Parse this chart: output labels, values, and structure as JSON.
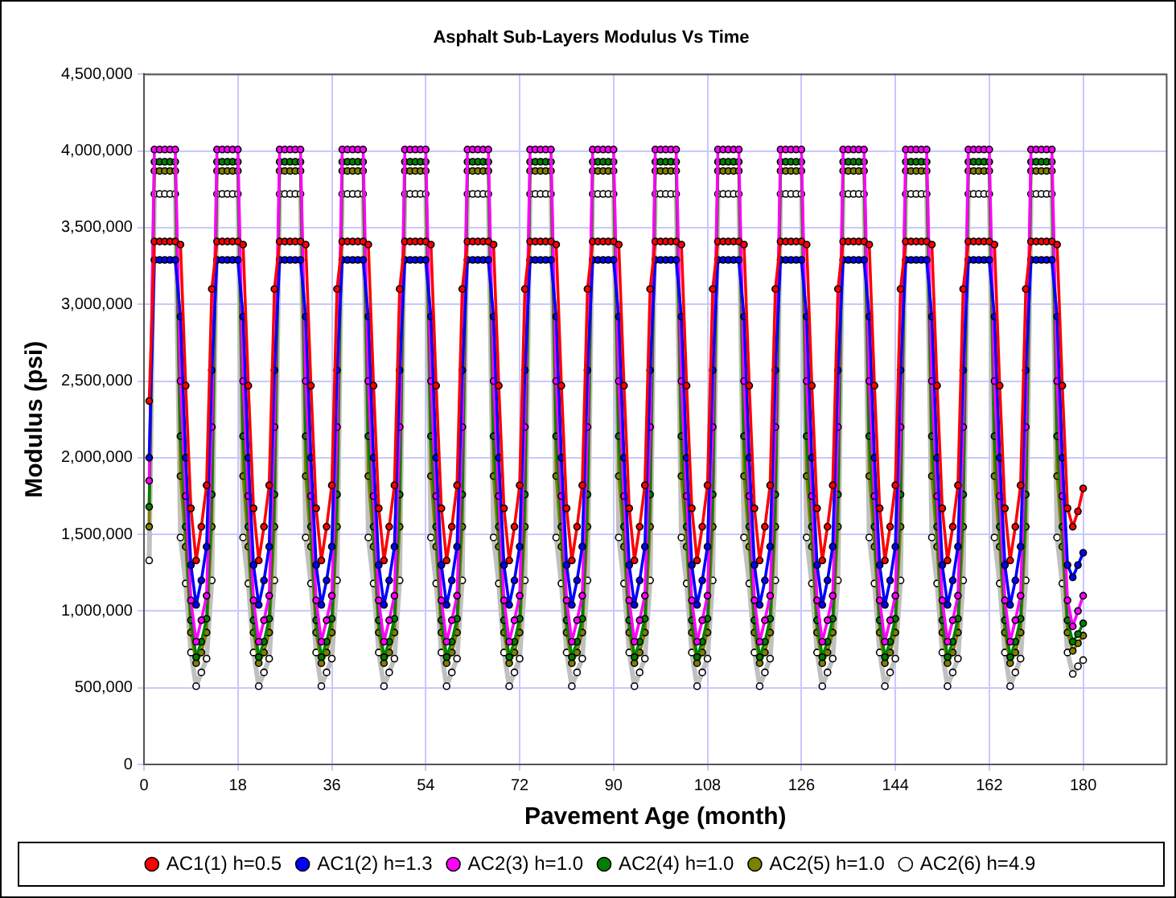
{
  "chart_data": {
    "type": "line",
    "title": "Asphalt Sub-Layers Modulus Vs Time",
    "xlabel": "Pavement Age (month)",
    "ylabel": "Modulus (psi)",
    "x": [
      1,
      2,
      3,
      4,
      5,
      6,
      7,
      8,
      9,
      10,
      11,
      12,
      13,
      14,
      15,
      16,
      17,
      18,
      19,
      20,
      21,
      22,
      23,
      24,
      25,
      26,
      27,
      28,
      29,
      30,
      31,
      32,
      33,
      34,
      35,
      36,
      37,
      38,
      39,
      40,
      41,
      42,
      43,
      44,
      45,
      46,
      47,
      48,
      49,
      50,
      51,
      52,
      53,
      54,
      55,
      56,
      57,
      58,
      59,
      60,
      61,
      62,
      63,
      64,
      65,
      66,
      67,
      68,
      69,
      70,
      71,
      72,
      73,
      74,
      75,
      76,
      77,
      78,
      79,
      80,
      81,
      82,
      83,
      84,
      85,
      86,
      87,
      88,
      89,
      90,
      91,
      92,
      93,
      94,
      95,
      96,
      97,
      98,
      99,
      100,
      101,
      102,
      103,
      104,
      105,
      106,
      107,
      108,
      109,
      110,
      111,
      112,
      113,
      114,
      115,
      116,
      117,
      118,
      119,
      120,
      121,
      122,
      123,
      124,
      125,
      126,
      127,
      128,
      129,
      130,
      131,
      132,
      133,
      134,
      135,
      136,
      137,
      138,
      139,
      140,
      141,
      142,
      143,
      144,
      145,
      146,
      147,
      148,
      149,
      150,
      151,
      152,
      153,
      154,
      155,
      156,
      157,
      158,
      159,
      160,
      161,
      162,
      163,
      164,
      165,
      166,
      167,
      168,
      169,
      170,
      171,
      172,
      173,
      174,
      175,
      176,
      177,
      178,
      179,
      180
    ],
    "xlim": [
      0,
      196
    ],
    "xticks": [
      0,
      18,
      36,
      54,
      72,
      90,
      108,
      126,
      144,
      162,
      180
    ],
    "ylim": [
      0,
      4500000
    ],
    "yticks": [
      0,
      {
        "value": 500000,
        "label": "500,000"
      },
      {
        "value": 1000000,
        "label": "1,000,000"
      },
      {
        "value": 1500000,
        "label": "1,500,000"
      },
      {
        "value": 2000000,
        "label": "2,000,000"
      },
      {
        "value": 2500000,
        "label": "2,500,000"
      },
      {
        "value": 3000000,
        "label": "3,000,000"
      },
      {
        "value": 3500000,
        "label": "3,500,000"
      },
      {
        "value": 4000000,
        "label": "4,000,000"
      },
      {
        "value": 4500000,
        "label": "4,500,000"
      }
    ],
    "grid": true,
    "legend": "bottom",
    "marker": "circle",
    "line_style": "solid",
    "series": [
      {
        "name": "AC1(1) h=0.5",
        "color": "#ff0000",
        "values": [
          2370000,
          3410000,
          3410000,
          3410000,
          3410000,
          3410000,
          3390000,
          2470000,
          1670000,
          1330000,
          1550000,
          1820000,
          3100000,
          3410000,
          3410000,
          3410000,
          3410000,
          3410000,
          3390000,
          2470000,
          1670000,
          1330000,
          1550000,
          1820000,
          3100000,
          3410000,
          3410000,
          3410000,
          3410000,
          3410000,
          3390000,
          2470000,
          1670000,
          1330000,
          1550000,
          1820000,
          3100000,
          3410000,
          3410000,
          3410000,
          3410000,
          3410000,
          3390000,
          2470000,
          1670000,
          1330000,
          1550000,
          1820000,
          3100000,
          3410000,
          3410000,
          3410000,
          3410000,
          3410000,
          3390000,
          2470000,
          1670000,
          1330000,
          1550000,
          1820000,
          3100000,
          3410000,
          3410000,
          3410000,
          3410000,
          3410000,
          3390000,
          2470000,
          1670000,
          1330000,
          1550000,
          1820000,
          3100000,
          3410000,
          3410000,
          3410000,
          3410000,
          3410000,
          3390000,
          2470000,
          1670000,
          1330000,
          1550000,
          1820000,
          3100000,
          3410000,
          3410000,
          3410000,
          3410000,
          3410000,
          3390000,
          2470000,
          1670000,
          1330000,
          1550000,
          1820000,
          3100000,
          3410000,
          3410000,
          3410000,
          3410000,
          3410000,
          3390000,
          2470000,
          1670000,
          1330000,
          1550000,
          1820000,
          3100000,
          3410000,
          3410000,
          3410000,
          3410000,
          3410000,
          3390000,
          2470000,
          1670000,
          1330000,
          1550000,
          1820000,
          3100000,
          3410000,
          3410000,
          3410000,
          3410000,
          3410000,
          3390000,
          2470000,
          1670000,
          1330000,
          1550000,
          1820000,
          3100000,
          3410000,
          3410000,
          3410000,
          3410000,
          3410000,
          3390000,
          2470000,
          1670000,
          1330000,
          1550000,
          1820000,
          3100000,
          3410000,
          3410000,
          3410000,
          3410000,
          3410000,
          3390000,
          2470000,
          1670000,
          1330000,
          1550000,
          1820000,
          3100000,
          3410000,
          3410000,
          3410000,
          3410000,
          3410000,
          3390000,
          2470000,
          1670000,
          1330000,
          1550000,
          1820000,
          3100000,
          3410000,
          3410000,
          3410000,
          3410000,
          3410000,
          3390000,
          2470000,
          1670000,
          1550000,
          1650000,
          1800000
        ]
      },
      {
        "name": "AC1(2) h=1.3",
        "color": "#0000ff",
        "values": [
          2000000,
          3290000,
          3290000,
          3290000,
          3290000,
          3290000,
          2920000,
          2000000,
          1300000,
          1040000,
          1200000,
          1420000,
          2570000,
          3290000,
          3290000,
          3290000,
          3290000,
          3290000,
          2920000,
          2000000,
          1300000,
          1040000,
          1200000,
          1420000,
          2570000,
          3290000,
          3290000,
          3290000,
          3290000,
          3290000,
          2920000,
          2000000,
          1300000,
          1040000,
          1200000,
          1420000,
          2570000,
          3290000,
          3290000,
          3290000,
          3290000,
          3290000,
          2920000,
          2000000,
          1300000,
          1040000,
          1200000,
          1420000,
          2570000,
          3290000,
          3290000,
          3290000,
          3290000,
          3290000,
          2920000,
          2000000,
          1300000,
          1040000,
          1200000,
          1420000,
          2570000,
          3290000,
          3290000,
          3290000,
          3290000,
          3290000,
          2920000,
          2000000,
          1300000,
          1040000,
          1200000,
          1420000,
          2570000,
          3290000,
          3290000,
          3290000,
          3290000,
          3290000,
          2920000,
          2000000,
          1300000,
          1040000,
          1200000,
          1420000,
          2570000,
          3290000,
          3290000,
          3290000,
          3290000,
          3290000,
          2920000,
          2000000,
          1300000,
          1040000,
          1200000,
          1420000,
          2570000,
          3290000,
          3290000,
          3290000,
          3290000,
          3290000,
          2920000,
          2000000,
          1300000,
          1040000,
          1200000,
          1420000,
          2570000,
          3290000,
          3290000,
          3290000,
          3290000,
          3290000,
          2920000,
          2000000,
          1300000,
          1040000,
          1200000,
          1420000,
          2570000,
          3290000,
          3290000,
          3290000,
          3290000,
          3290000,
          2920000,
          2000000,
          1300000,
          1040000,
          1200000,
          1420000,
          2570000,
          3290000,
          3290000,
          3290000,
          3290000,
          3290000,
          2920000,
          2000000,
          1300000,
          1040000,
          1200000,
          1420000,
          2570000,
          3290000,
          3290000,
          3290000,
          3290000,
          3290000,
          2920000,
          2000000,
          1300000,
          1040000,
          1200000,
          1420000,
          2570000,
          3290000,
          3290000,
          3290000,
          3290000,
          3290000,
          2920000,
          2000000,
          1300000,
          1040000,
          1200000,
          1420000,
          2570000,
          3290000,
          3290000,
          3290000,
          3290000,
          3290000,
          2920000,
          2000000,
          1300000,
          1220000,
          1300000,
          1380000
        ]
      },
      {
        "name": "AC2(3) h=1.0",
        "color": "#ff00ff",
        "values": [
          1850000,
          4010000,
          4010000,
          4010000,
          4010000,
          4010000,
          2500000,
          1750000,
          1070000,
          800000,
          940000,
          1100000,
          2200000,
          4010000,
          4010000,
          4010000,
          4010000,
          4010000,
          2500000,
          1750000,
          1070000,
          800000,
          940000,
          1100000,
          2200000,
          4010000,
          4010000,
          4010000,
          4010000,
          4010000,
          2500000,
          1750000,
          1070000,
          800000,
          940000,
          1100000,
          2200000,
          4010000,
          4010000,
          4010000,
          4010000,
          4010000,
          2500000,
          1750000,
          1070000,
          800000,
          940000,
          1100000,
          2200000,
          4010000,
          4010000,
          4010000,
          4010000,
          4010000,
          2500000,
          1750000,
          1070000,
          800000,
          940000,
          1100000,
          2200000,
          4010000,
          4010000,
          4010000,
          4010000,
          4010000,
          2500000,
          1750000,
          1070000,
          800000,
          940000,
          1100000,
          2200000,
          4010000,
          4010000,
          4010000,
          4010000,
          4010000,
          2500000,
          1750000,
          1070000,
          800000,
          940000,
          1100000,
          2200000,
          4010000,
          4010000,
          4010000,
          4010000,
          4010000,
          2500000,
          1750000,
          1070000,
          800000,
          940000,
          1100000,
          2200000,
          4010000,
          4010000,
          4010000,
          4010000,
          4010000,
          2500000,
          1750000,
          1070000,
          800000,
          940000,
          1100000,
          2200000,
          4010000,
          4010000,
          4010000,
          4010000,
          4010000,
          2500000,
          1750000,
          1070000,
          800000,
          940000,
          1100000,
          2200000,
          4010000,
          4010000,
          4010000,
          4010000,
          4010000,
          2500000,
          1750000,
          1070000,
          800000,
          940000,
          1100000,
          2200000,
          4010000,
          4010000,
          4010000,
          4010000,
          4010000,
          2500000,
          1750000,
          1070000,
          800000,
          940000,
          1100000,
          2200000,
          4010000,
          4010000,
          4010000,
          4010000,
          4010000,
          2500000,
          1750000,
          1070000,
          800000,
          940000,
          1100000,
          2200000,
          4010000,
          4010000,
          4010000,
          4010000,
          4010000,
          2500000,
          1750000,
          1070000,
          800000,
          940000,
          1100000,
          2200000,
          4010000,
          4010000,
          4010000,
          4010000,
          4010000,
          2500000,
          1750000,
          1070000,
          900000,
          1000000,
          1100000
        ]
      },
      {
        "name": "AC2(4) h=1.0",
        "color": "#008000",
        "values": [
          1680000,
          3930000,
          3930000,
          3930000,
          3930000,
          3930000,
          2140000,
          1550000,
          940000,
          700000,
          800000,
          950000,
          1760000,
          3930000,
          3930000,
          3930000,
          3930000,
          3930000,
          2140000,
          1550000,
          940000,
          700000,
          800000,
          950000,
          1760000,
          3930000,
          3930000,
          3930000,
          3930000,
          3930000,
          2140000,
          1550000,
          940000,
          700000,
          800000,
          950000,
          1760000,
          3930000,
          3930000,
          3930000,
          3930000,
          3930000,
          2140000,
          1550000,
          940000,
          700000,
          800000,
          950000,
          1760000,
          3930000,
          3930000,
          3930000,
          3930000,
          3930000,
          2140000,
          1550000,
          940000,
          700000,
          800000,
          950000,
          1760000,
          3930000,
          3930000,
          3930000,
          3930000,
          3930000,
          2140000,
          1550000,
          940000,
          700000,
          800000,
          950000,
          1760000,
          3930000,
          3930000,
          3930000,
          3930000,
          3930000,
          2140000,
          1550000,
          940000,
          700000,
          800000,
          950000,
          1760000,
          3930000,
          3930000,
          3930000,
          3930000,
          3930000,
          2140000,
          1550000,
          940000,
          700000,
          800000,
          950000,
          1760000,
          3930000,
          3930000,
          3930000,
          3930000,
          3930000,
          2140000,
          1550000,
          940000,
          700000,
          800000,
          950000,
          1760000,
          3930000,
          3930000,
          3930000,
          3930000,
          3930000,
          2140000,
          1550000,
          940000,
          700000,
          800000,
          950000,
          1760000,
          3930000,
          3930000,
          3930000,
          3930000,
          3930000,
          2140000,
          1550000,
          940000,
          700000,
          800000,
          950000,
          1760000,
          3930000,
          3930000,
          3930000,
          3930000,
          3930000,
          2140000,
          1550000,
          940000,
          700000,
          800000,
          950000,
          1760000,
          3930000,
          3930000,
          3930000,
          3930000,
          3930000,
          2140000,
          1550000,
          940000,
          700000,
          800000,
          950000,
          1760000,
          3930000,
          3930000,
          3930000,
          3930000,
          3930000,
          2140000,
          1550000,
          940000,
          700000,
          800000,
          950000,
          1760000,
          3930000,
          3930000,
          3930000,
          3930000,
          3930000,
          2140000,
          1550000,
          940000,
          800000,
          850000,
          920000
        ]
      },
      {
        "name": "AC2(5) h=1.0",
        "color": "#808000",
        "values": [
          1550000,
          3870000,
          3870000,
          3870000,
          3870000,
          3870000,
          1880000,
          1420000,
          860000,
          660000,
          730000,
          860000,
          1550000,
          3870000,
          3870000,
          3870000,
          3870000,
          3870000,
          1880000,
          1420000,
          860000,
          660000,
          730000,
          860000,
          1550000,
          3870000,
          3870000,
          3870000,
          3870000,
          3870000,
          1880000,
          1420000,
          860000,
          660000,
          730000,
          860000,
          1550000,
          3870000,
          3870000,
          3870000,
          3870000,
          3870000,
          1880000,
          1420000,
          860000,
          660000,
          730000,
          860000,
          1550000,
          3870000,
          3870000,
          3870000,
          3870000,
          3870000,
          1880000,
          1420000,
          860000,
          660000,
          730000,
          860000,
          1550000,
          3870000,
          3870000,
          3870000,
          3870000,
          3870000,
          1880000,
          1420000,
          860000,
          660000,
          730000,
          860000,
          1550000,
          3870000,
          3870000,
          3870000,
          3870000,
          3870000,
          1880000,
          1420000,
          860000,
          660000,
          730000,
          860000,
          1550000,
          3870000,
          3870000,
          3870000,
          3870000,
          3870000,
          1880000,
          1420000,
          860000,
          660000,
          730000,
          860000,
          1550000,
          3870000,
          3870000,
          3870000,
          3870000,
          3870000,
          1880000,
          1420000,
          860000,
          660000,
          730000,
          860000,
          1550000,
          3870000,
          3870000,
          3870000,
          3870000,
          3870000,
          1880000,
          1420000,
          860000,
          660000,
          730000,
          860000,
          1550000,
          3870000,
          3870000,
          3870000,
          3870000,
          3870000,
          1880000,
          1420000,
          860000,
          660000,
          730000,
          860000,
          1550000,
          3870000,
          3870000,
          3870000,
          3870000,
          3870000,
          1880000,
          1420000,
          860000,
          660000,
          730000,
          860000,
          1550000,
          3870000,
          3870000,
          3870000,
          3870000,
          3870000,
          1880000,
          1420000,
          860000,
          660000,
          730000,
          860000,
          1550000,
          3870000,
          3870000,
          3870000,
          3870000,
          3870000,
          1880000,
          1420000,
          860000,
          660000,
          730000,
          860000,
          1550000,
          3870000,
          3870000,
          3870000,
          3870000,
          3870000,
          1880000,
          1420000,
          860000,
          740000,
          790000,
          840000
        ]
      },
      {
        "name": "AC2(6) h=4.9",
        "color": "#c0c0c0",
        "values": [
          1330000,
          3720000,
          3720000,
          3720000,
          3720000,
          3720000,
          1480000,
          1180000,
          730000,
          510000,
          600000,
          690000,
          1200000,
          3720000,
          3720000,
          3720000,
          3720000,
          3720000,
          1480000,
          1180000,
          730000,
          510000,
          600000,
          690000,
          1200000,
          3720000,
          3720000,
          3720000,
          3720000,
          3720000,
          1480000,
          1180000,
          730000,
          510000,
          600000,
          690000,
          1200000,
          3720000,
          3720000,
          3720000,
          3720000,
          3720000,
          1480000,
          1180000,
          730000,
          510000,
          600000,
          690000,
          1200000,
          3720000,
          3720000,
          3720000,
          3720000,
          3720000,
          1480000,
          1180000,
          730000,
          510000,
          600000,
          690000,
          1200000,
          3720000,
          3720000,
          3720000,
          3720000,
          3720000,
          1480000,
          1180000,
          730000,
          510000,
          600000,
          690000,
          1200000,
          3720000,
          3720000,
          3720000,
          3720000,
          3720000,
          1480000,
          1180000,
          730000,
          510000,
          600000,
          690000,
          1200000,
          3720000,
          3720000,
          3720000,
          3720000,
          3720000,
          1480000,
          1180000,
          730000,
          510000,
          600000,
          690000,
          1200000,
          3720000,
          3720000,
          3720000,
          3720000,
          3720000,
          1480000,
          1180000,
          730000,
          510000,
          600000,
          690000,
          1200000,
          3720000,
          3720000,
          3720000,
          3720000,
          3720000,
          1480000,
          1180000,
          730000,
          510000,
          600000,
          690000,
          1200000,
          3720000,
          3720000,
          3720000,
          3720000,
          3720000,
          1480000,
          1180000,
          730000,
          510000,
          600000,
          690000,
          1200000,
          3720000,
          3720000,
          3720000,
          3720000,
          3720000,
          1480000,
          1180000,
          730000,
          510000,
          600000,
          690000,
          1200000,
          3720000,
          3720000,
          3720000,
          3720000,
          3720000,
          1480000,
          1180000,
          730000,
          510000,
          600000,
          690000,
          1200000,
          3720000,
          3720000,
          3720000,
          3720000,
          3720000,
          1480000,
          1180000,
          730000,
          510000,
          600000,
          690000,
          1200000,
          3720000,
          3720000,
          3720000,
          3720000,
          3720000,
          1480000,
          1180000,
          730000,
          590000,
          640000,
          680000
        ]
      }
    ]
  }
}
